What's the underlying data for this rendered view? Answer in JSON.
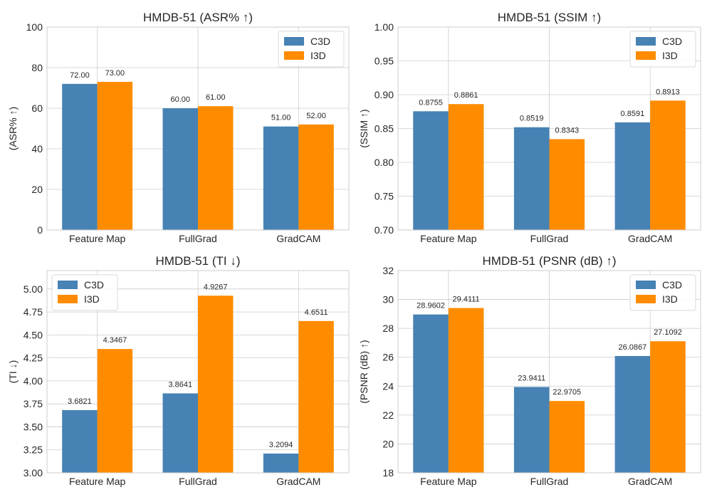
{
  "colors": {
    "c3d": "#4682b4",
    "i3d": "#ff8c00",
    "grid": "#cccccc",
    "spine": "#cccccc"
  },
  "chart_data": [
    {
      "type": "bar",
      "title": "HMDB-51  (ASR% ↑)",
      "xlabel": "",
      "ylabel": "(ASR% ↑)",
      "categories": [
        "Feature Map",
        "FullGrad",
        "GradCAM"
      ],
      "series": [
        {
          "name": "C3D",
          "values": [
            72.0,
            60.0,
            51.0
          ],
          "labels": [
            "72.00",
            "60.00",
            "51.00"
          ]
        },
        {
          "name": "I3D",
          "values": [
            73.0,
            61.0,
            52.0
          ],
          "labels": [
            "73.00",
            "61.00",
            "52.00"
          ]
        }
      ],
      "ylim": [
        0,
        100
      ],
      "yticks": [
        "0",
        "20",
        "40",
        "60",
        "80",
        "100"
      ],
      "ytick_values": [
        0,
        20,
        40,
        60,
        80,
        100
      ],
      "legend": "top-right",
      "grid": true
    },
    {
      "type": "bar",
      "title": "HMDB-51  (SSIM ↑)",
      "xlabel": "",
      "ylabel": "(SSIM ↑)",
      "categories": [
        "Feature Map",
        "FullGrad",
        "GradCAM"
      ],
      "series": [
        {
          "name": "C3D",
          "values": [
            0.8755,
            0.8519,
            0.8591
          ],
          "labels": [
            "0.8755",
            "0.8519",
            "0.8591"
          ]
        },
        {
          "name": "I3D",
          "values": [
            0.8861,
            0.8343,
            0.8913
          ],
          "labels": [
            "0.8861",
            "0.8343",
            "0.8913"
          ]
        }
      ],
      "ylim": [
        0.7,
        1.0
      ],
      "yticks": [
        "0.70",
        "0.75",
        "0.80",
        "0.85",
        "0.90",
        "0.95",
        "1.00"
      ],
      "ytick_values": [
        0.7,
        0.75,
        0.8,
        0.85,
        0.9,
        0.95,
        1.0
      ],
      "legend": "top-right",
      "grid": true
    },
    {
      "type": "bar",
      "title": "HMDB-51  (TI ↓)",
      "xlabel": "",
      "ylabel": "(TI ↓)",
      "categories": [
        "Feature Map",
        "FullGrad",
        "GradCAM"
      ],
      "series": [
        {
          "name": "C3D",
          "values": [
            3.6821,
            3.8641,
            3.2094
          ],
          "labels": [
            "3.6821",
            "3.8641",
            "3.2094"
          ]
        },
        {
          "name": "I3D",
          "values": [
            4.3467,
            4.9267,
            4.6511
          ],
          "labels": [
            "4.3467",
            "4.9267",
            "4.6511"
          ]
        }
      ],
      "ylim": [
        3.0,
        5.2
      ],
      "yticks": [
        "3.00",
        "3.25",
        "3.50",
        "3.75",
        "4.00",
        "4.25",
        "4.50",
        "4.75",
        "5.00"
      ],
      "ytick_values": [
        3.0,
        3.25,
        3.5,
        3.75,
        4.0,
        4.25,
        4.5,
        4.75,
        5.0
      ],
      "legend": "top-left",
      "grid": true
    },
    {
      "type": "bar",
      "title": "HMDB-51  (PSNR (dB) ↑)",
      "xlabel": "",
      "ylabel": "(PSNR (dB) ↑)",
      "categories": [
        "Feature Map",
        "FullGrad",
        "GradCAM"
      ],
      "series": [
        {
          "name": "C3D",
          "values": [
            28.9602,
            23.9411,
            26.0867
          ],
          "labels": [
            "28.9602",
            "23.9411",
            "26.0867"
          ]
        },
        {
          "name": "I3D",
          "values": [
            29.4111,
            22.9705,
            27.1092
          ],
          "labels": [
            "29.4111",
            "22.9705",
            "27.1092"
          ]
        }
      ],
      "ylim": [
        18,
        32
      ],
      "yticks": [
        "18",
        "20",
        "22",
        "24",
        "26",
        "28",
        "30",
        "32"
      ],
      "ytick_values": [
        18,
        20,
        22,
        24,
        26,
        28,
        30,
        32
      ],
      "legend": "top-right",
      "grid": true
    }
  ]
}
